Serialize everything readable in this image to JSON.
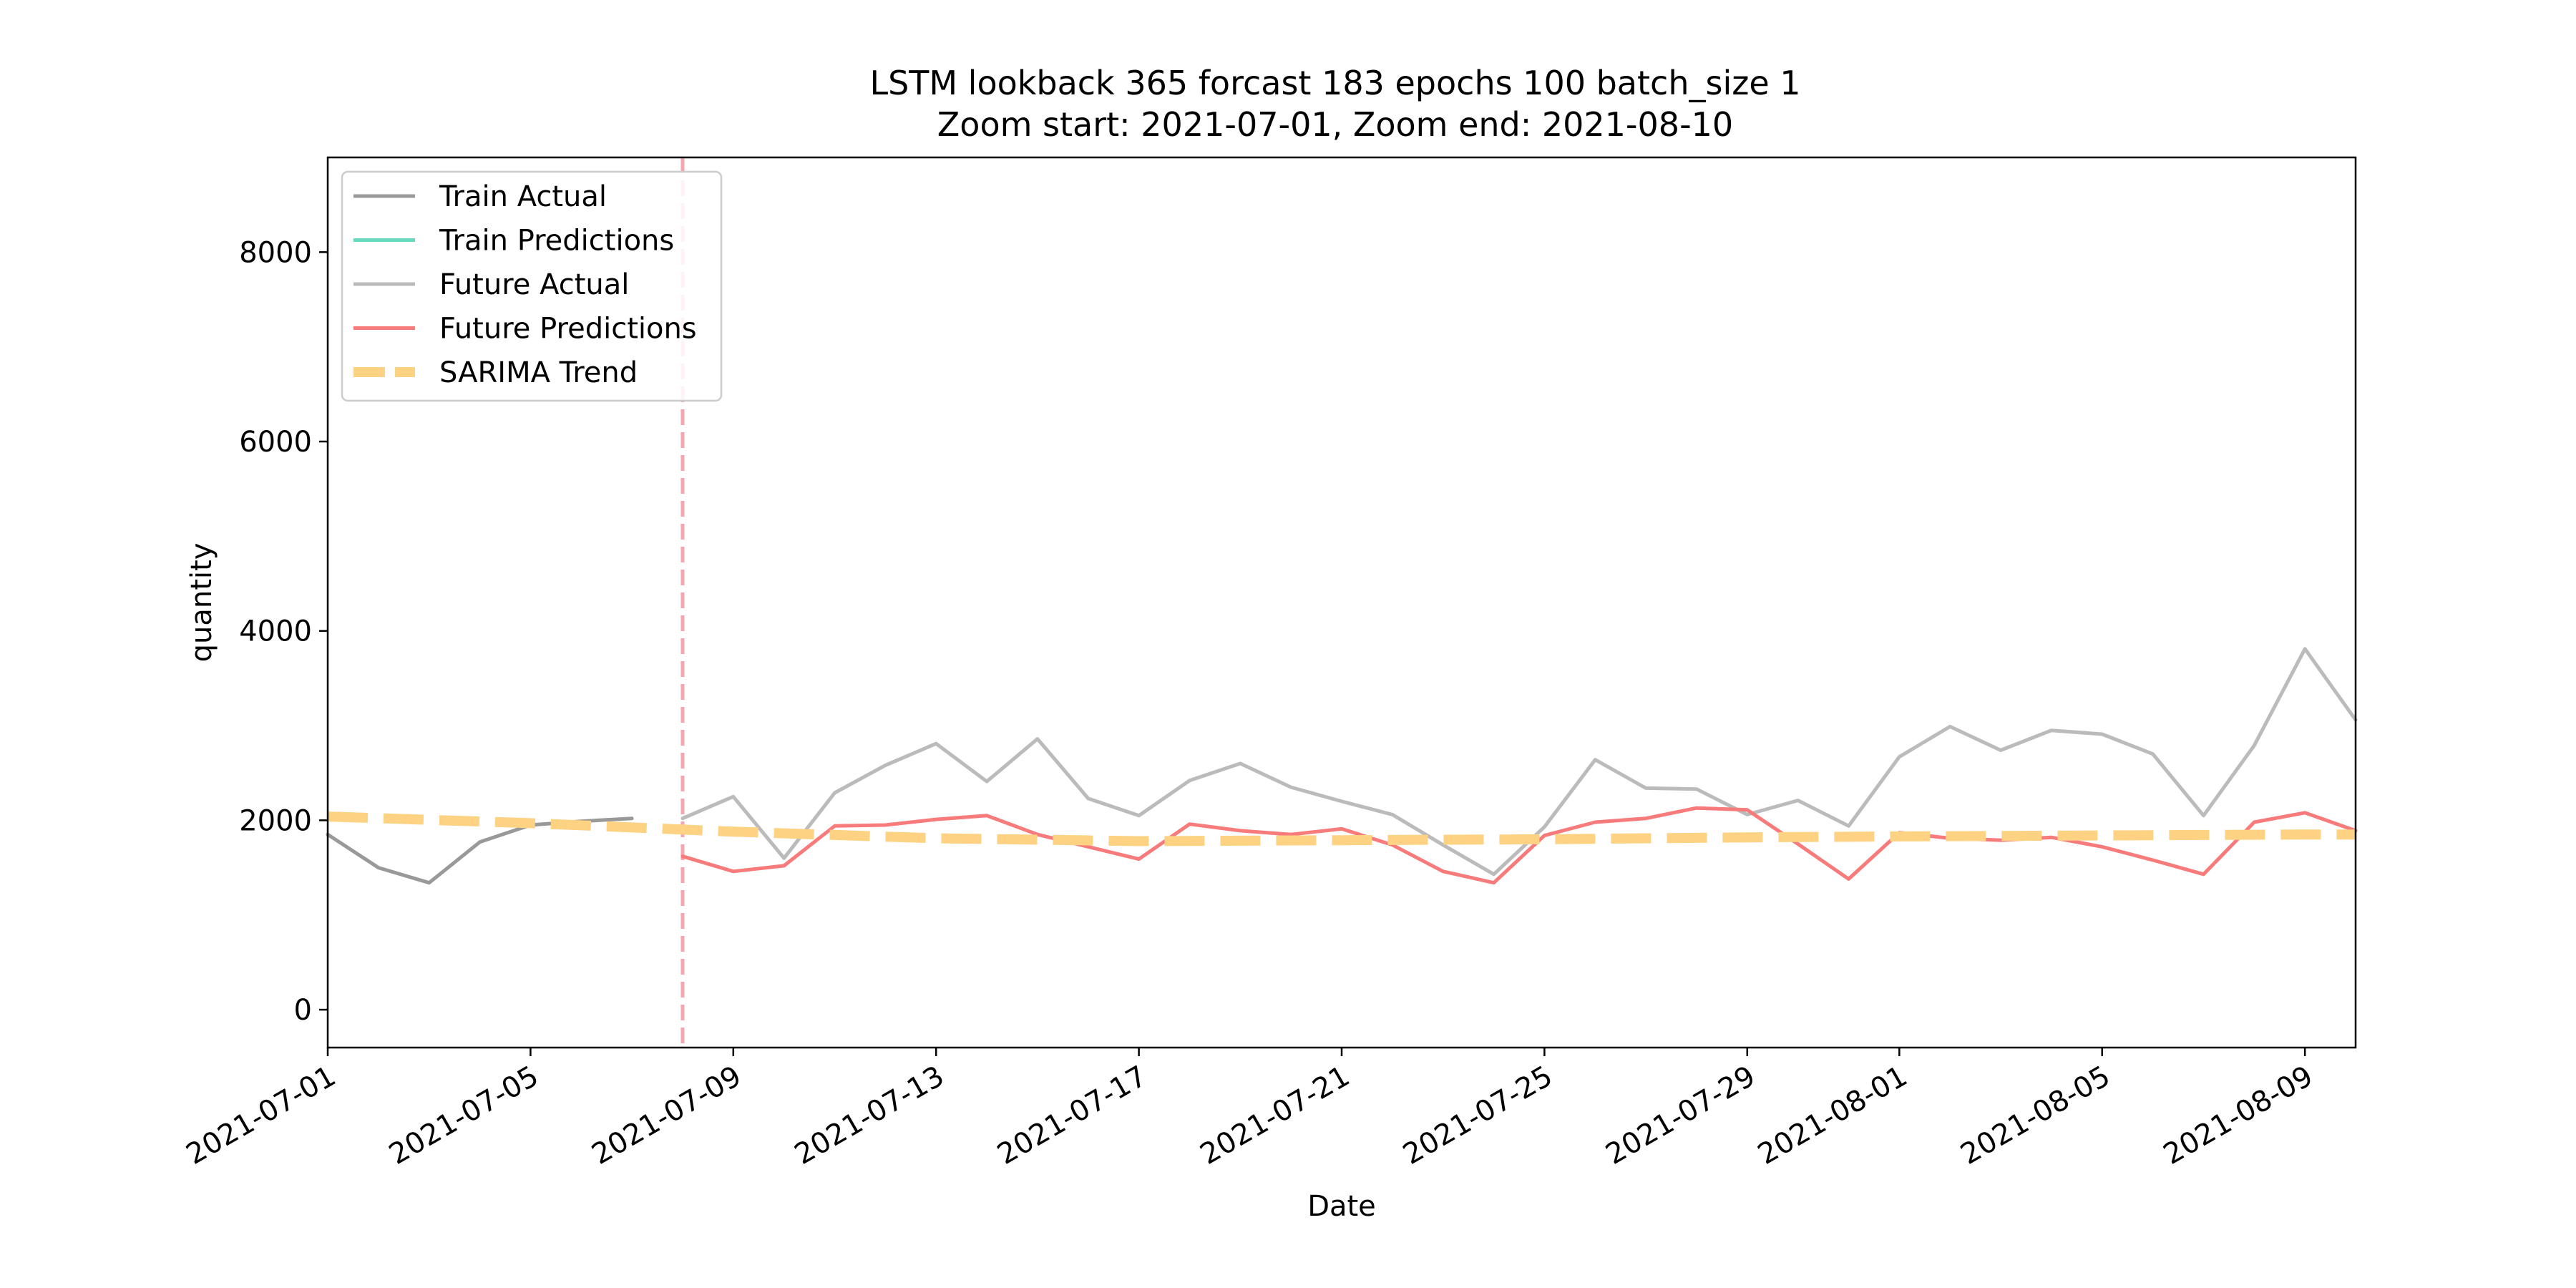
{
  "chart_data": {
    "type": "line",
    "title": "LSTM lookback 365 forcast 183 epochs 100 batch_size 1",
    "subtitle": "Zoom start: 2021-07-01, Zoom end: 2021-08-10",
    "xlabel": "Date",
    "ylabel": "quantity",
    "x_range": [
      "2021-07-01",
      "2021-08-10"
    ],
    "ylim": [
      -400,
      9000
    ],
    "x_ticks": [
      "2021-07-01",
      "2021-07-05",
      "2021-07-09",
      "2021-07-13",
      "2021-07-17",
      "2021-07-21",
      "2021-07-25",
      "2021-07-29",
      "2021-08-01",
      "2021-08-05",
      "2021-08-09"
    ],
    "y_ticks": [
      0,
      2000,
      4000,
      6000,
      8000
    ],
    "grid": false,
    "legend_position": "top-left",
    "vertical_marker": {
      "x": "2021-07-08",
      "color": "#f4a6ae",
      "style": "dashed"
    },
    "series": [
      {
        "name": "Train Actual",
        "color": "#999999",
        "style": "solid",
        "x": [
          "2021-07-01",
          "2021-07-02",
          "2021-07-03",
          "2021-07-04",
          "2021-07-05",
          "2021-07-06",
          "2021-07-07"
        ],
        "y": [
          1850,
          1500,
          1340,
          1770,
          1950,
          1990,
          2020
        ]
      },
      {
        "name": "Train Predictions",
        "color": "#66d9bf",
        "style": "solid",
        "x": [],
        "y": []
      },
      {
        "name": "Future Actual",
        "color": "#bbbbbb",
        "style": "solid",
        "x": [
          "2021-07-08",
          "2021-07-09",
          "2021-07-10",
          "2021-07-11",
          "2021-07-12",
          "2021-07-13",
          "2021-07-14",
          "2021-07-15",
          "2021-07-16",
          "2021-07-17",
          "2021-07-18",
          "2021-07-19",
          "2021-07-20",
          "2021-07-21",
          "2021-07-22",
          "2021-07-23",
          "2021-07-24",
          "2021-07-25",
          "2021-07-26",
          "2021-07-27",
          "2021-07-28",
          "2021-07-29",
          "2021-07-30",
          "2021-07-31",
          "2021-08-01",
          "2021-08-02",
          "2021-08-03",
          "2021-08-04",
          "2021-08-05",
          "2021-08-06",
          "2021-08-07",
          "2021-08-08",
          "2021-08-09",
          "2021-08-10"
        ],
        "y": [
          2020,
          2250,
          1600,
          2290,
          2580,
          2810,
          2410,
          2860,
          2230,
          2050,
          2420,
          2600,
          2350,
          2200,
          2060,
          1740,
          1430,
          1930,
          2640,
          2340,
          2330,
          2060,
          2210,
          1940,
          2670,
          2990,
          2740,
          2950,
          2910,
          2700,
          2050,
          2790,
          3810,
          3060
        ]
      },
      {
        "name": "Future Predictions",
        "color": "#f77b7b",
        "style": "solid",
        "x": [
          "2021-07-08",
          "2021-07-09",
          "2021-07-10",
          "2021-07-11",
          "2021-07-12",
          "2021-07-13",
          "2021-07-14",
          "2021-07-15",
          "2021-07-16",
          "2021-07-17",
          "2021-07-18",
          "2021-07-19",
          "2021-07-20",
          "2021-07-21",
          "2021-07-22",
          "2021-07-23",
          "2021-07-24",
          "2021-07-25",
          "2021-07-26",
          "2021-07-27",
          "2021-07-28",
          "2021-07-29",
          "2021-07-30",
          "2021-07-31",
          "2021-08-01",
          "2021-08-02",
          "2021-08-03",
          "2021-08-04",
          "2021-08-05",
          "2021-08-06",
          "2021-08-07",
          "2021-08-08",
          "2021-08-09",
          "2021-08-10"
        ],
        "y": [
          1620,
          1460,
          1520,
          1940,
          1950,
          2010,
          2050,
          1850,
          1720,
          1590,
          1960,
          1890,
          1850,
          1910,
          1740,
          1460,
          1340,
          1840,
          1980,
          2020,
          2130,
          2110,
          1750,
          1380,
          1870,
          1810,
          1790,
          1820,
          1720,
          1580,
          1430,
          1980,
          2080,
          1890
        ]
      },
      {
        "name": "SARIMA Trend",
        "color": "#fdd283",
        "style": "dashed",
        "x": [
          "2021-07-01",
          "2021-07-05",
          "2021-07-09",
          "2021-07-13",
          "2021-07-17",
          "2021-07-21",
          "2021-07-25",
          "2021-07-29",
          "2021-08-01",
          "2021-08-05",
          "2021-08-09",
          "2021-08-10"
        ],
        "y": [
          2040,
          1970,
          1880,
          1810,
          1780,
          1790,
          1800,
          1820,
          1830,
          1840,
          1850,
          1850
        ]
      }
    ]
  }
}
